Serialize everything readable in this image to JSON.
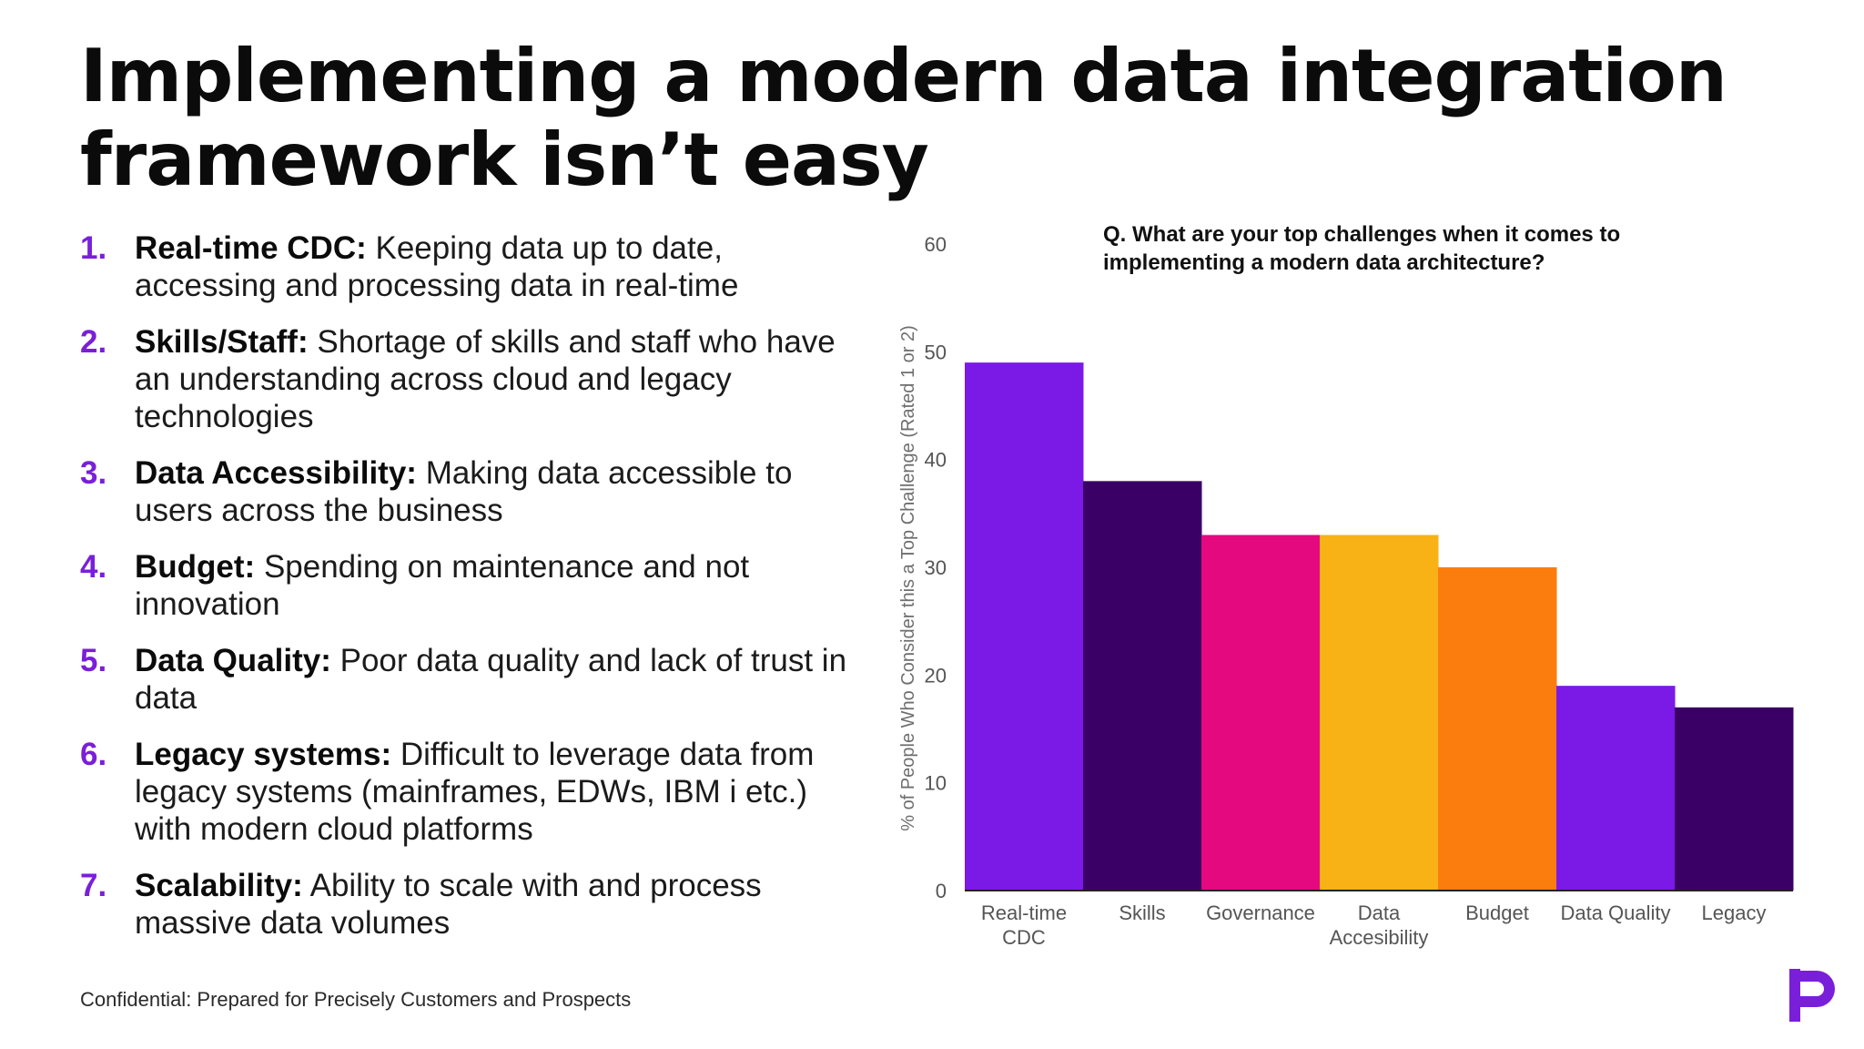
{
  "slide": {
    "title": "Implementing a modern data integration framework isn’t easy",
    "footer": "Confidential: Prepared for Precisely Customers and Prospects"
  },
  "challenges": [
    {
      "number": "1.",
      "term": "Real-time CDC:",
      "description": "Keeping data up to date, accessing and processing data in real-time"
    },
    {
      "number": "2.",
      "term": "Skills/Staff:",
      "description": "Shortage of skills and staff who have an understanding across cloud and legacy technologies"
    },
    {
      "number": "3.",
      "term": "Data Accessibility:",
      "description": "Making data accessible to users across the business"
    },
    {
      "number": "4.",
      "term": "Budget:",
      "description": "Spending on maintenance and not innovation"
    },
    {
      "number": "5.",
      "term": "Data Quality:",
      "description": "Poor data quality and lack of trust in data"
    },
    {
      "number": "6.",
      "term": "Legacy systems:",
      "description": "Difficult to leverage data from legacy systems (mainframes, EDWs, IBM i etc.) with modern cloud platforms"
    },
    {
      "number": "7.",
      "term": "Scalability:",
      "description": "Ability to scale with and process massive data volumes"
    }
  ],
  "colors": {
    "accent": "#7a1fd9",
    "purple": "#7b19e6",
    "dark_purple": "#3b0066",
    "magenta": "#e5097f",
    "yellow": "#f9b215",
    "orange": "#fb7d0e"
  },
  "logo_icon": "precisely-p-logo",
  "chart_data": {
    "type": "bar",
    "title": "Q. What are your top challenges when it comes to implementing a modern data architecture?",
    "categories": [
      [
        "Real-time",
        "CDC"
      ],
      [
        "Skills"
      ],
      [
        "Governance"
      ],
      [
        "Data",
        "Accesibility"
      ],
      [
        "Budget"
      ],
      [
        "Data Quality"
      ],
      [
        "Legacy"
      ]
    ],
    "values": [
      49,
      38,
      33,
      33,
      30,
      19,
      17
    ],
    "bar_colors": [
      "#7b19e6",
      "#3b0066",
      "#e5097f",
      "#f9b215",
      "#fb7d0e",
      "#7b19e6",
      "#3b0066"
    ],
    "ylabel": "% of People Who Consider this a Top Challenge (Rated 1 or 2)",
    "xlabel": "",
    "ylim": [
      0,
      60
    ],
    "yticks": [
      0,
      10,
      20,
      30,
      40,
      50,
      60
    ],
    "grid": false
  }
}
